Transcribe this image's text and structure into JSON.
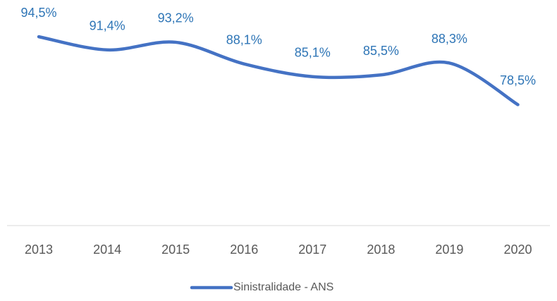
{
  "chart_data": {
    "type": "line",
    "categories": [
      "2013",
      "2014",
      "2015",
      "2016",
      "2017",
      "2018",
      "2019",
      "2020"
    ],
    "series": [
      {
        "name": "Sinistralidade - ANS",
        "color": "#4472c4",
        "values": [
          94.5,
          91.4,
          93.2,
          88.1,
          85.1,
          85.5,
          88.3,
          78.5
        ],
        "value_labels": [
          "94,5%",
          "91,4%",
          "93,2%",
          "88,1%",
          "85,1%",
          "85,5%",
          "88,3%",
          "78,5%"
        ]
      }
    ],
    "ylim": [
      50,
      100
    ],
    "legend": "bottom"
  }
}
